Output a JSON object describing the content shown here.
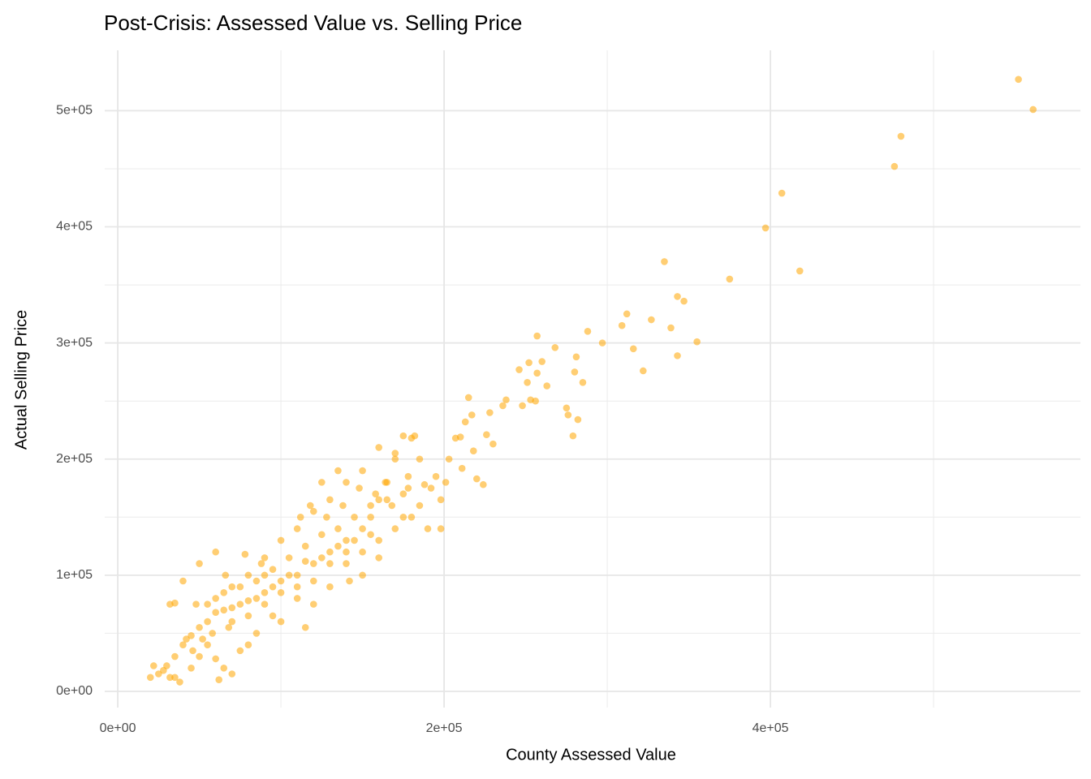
{
  "chart_data": {
    "type": "scatter",
    "title": "Post-Crisis: Assessed Value vs. Selling Price",
    "x_label": "County Assessed Value",
    "y_label": "Actual Selling Price",
    "color": "#ffa500",
    "grid": true,
    "xlim": [
      -8000,
      590000
    ],
    "ylim": [
      -14000,
      552000
    ],
    "xticks": [
      {
        "value": 0,
        "label": "0e+00"
      },
      {
        "value": 200000,
        "label": "2e+05"
      },
      {
        "value": 400000,
        "label": "4e+05"
      }
    ],
    "yticks": [
      {
        "value": 0,
        "label": "0e+00"
      },
      {
        "value": 100000,
        "label": "1e+05"
      },
      {
        "value": 200000,
        "label": "2e+05"
      },
      {
        "value": 300000,
        "label": "3e+05"
      },
      {
        "value": 400000,
        "label": "4e+05"
      },
      {
        "value": 500000,
        "label": "5e+05"
      }
    ],
    "xminor": [
      100000,
      300000,
      500000
    ],
    "yminor": [
      50000,
      150000,
      250000,
      350000,
      450000
    ],
    "x": [
      552000,
      561000,
      480000,
      476000,
      407000,
      397000,
      418000,
      375000,
      335000,
      343000,
      347000,
      355000,
      343000,
      339000,
      327000,
      322000,
      316000,
      312000,
      309000,
      297000,
      288000,
      285000,
      280000,
      281000,
      275000,
      276000,
      279000,
      282000,
      268000,
      263000,
      257000,
      260000,
      252000,
      251000,
      246000,
      257000,
      253000,
      248000,
      256000,
      238000,
      236000,
      228000,
      230000,
      226000,
      213000,
      217000,
      215000,
      207000,
      210000,
      218000,
      220000,
      224000,
      203000,
      211000,
      198000,
      192000,
      198000,
      201000,
      182000,
      180000,
      178000,
      175000,
      170000,
      164000,
      160000,
      155000,
      150000,
      145000,
      140000,
      135000,
      130000,
      125000,
      120000,
      115000,
      110000,
      105000,
      100000,
      95000,
      90000,
      85000,
      80000,
      75000,
      70000,
      65000,
      60000,
      55000,
      50000,
      45000,
      40000,
      35000,
      30000,
      25000,
      20000,
      22000,
      28000,
      32000,
      35000,
      38000,
      45000,
      50000,
      55000,
      60000,
      65000,
      70000,
      62000,
      48000,
      40000,
      35000,
      32000,
      50000,
      60000,
      70000,
      80000,
      90000,
      100000,
      110000,
      120000,
      130000,
      140000,
      125000,
      135000,
      150000,
      160000,
      170000,
      165000,
      150000,
      160000,
      140000,
      130000,
      120000,
      115000,
      110000,
      100000,
      95000,
      85000,
      80000,
      75000,
      68000,
      58000,
      52000,
      46000,
      42000,
      90000,
      105000,
      115000,
      125000,
      135000,
      145000,
      155000,
      165000,
      175000,
      185000,
      190000,
      180000,
      170000,
      160000,
      150000,
      140000,
      130000,
      120000,
      110000,
      100000,
      95000,
      85000,
      75000,
      65000,
      60000,
      55000,
      70000,
      80000,
      90000,
      185000,
      195000,
      175000,
      88000,
      78000,
      66000,
      112000,
      118000,
      128000,
      138000,
      148000,
      158000,
      168000,
      178000,
      188000,
      142000,
      155000
    ],
    "values": [
      527000,
      501000,
      478000,
      452000,
      429000,
      399000,
      362000,
      355000,
      370000,
      340000,
      336000,
      301000,
      289000,
      313000,
      320000,
      276000,
      295000,
      325000,
      315000,
      300000,
      310000,
      266000,
      275000,
      288000,
      244000,
      238000,
      220000,
      234000,
      296000,
      263000,
      306000,
      284000,
      283000,
      266000,
      277000,
      274000,
      251000,
      246000,
      250000,
      251000,
      246000,
      240000,
      213000,
      221000,
      232000,
      238000,
      253000,
      218000,
      219000,
      207000,
      183000,
      178000,
      200000,
      192000,
      165000,
      175000,
      140000,
      180000,
      220000,
      218000,
      185000,
      150000,
      200000,
      180000,
      165000,
      150000,
      140000,
      130000,
      120000,
      125000,
      120000,
      115000,
      110000,
      112000,
      100000,
      100000,
      95000,
      90000,
      85000,
      80000,
      78000,
      75000,
      72000,
      70000,
      68000,
      60000,
      55000,
      48000,
      40000,
      30000,
      22000,
      15000,
      12000,
      22000,
      18000,
      12000,
      12000,
      8000,
      20000,
      30000,
      40000,
      28000,
      20000,
      15000,
      10000,
      75000,
      95000,
      76000,
      75000,
      110000,
      120000,
      90000,
      100000,
      115000,
      130000,
      140000,
      155000,
      165000,
      180000,
      180000,
      190000,
      190000,
      210000,
      205000,
      180000,
      100000,
      115000,
      110000,
      90000,
      75000,
      55000,
      80000,
      60000,
      65000,
      50000,
      40000,
      35000,
      55000,
      50000,
      45000,
      35000,
      45000,
      100000,
      115000,
      125000,
      135000,
      140000,
      150000,
      160000,
      165000,
      170000,
      160000,
      140000,
      150000,
      140000,
      130000,
      120000,
      130000,
      110000,
      95000,
      90000,
      85000,
      105000,
      95000,
      90000,
      85000,
      80000,
      75000,
      60000,
      65000,
      75000,
      200000,
      185000,
      220000,
      110000,
      118000,
      100000,
      150000,
      160000,
      150000,
      160000,
      175000,
      170000,
      160000,
      175000,
      178000,
      95000,
      135000
    ]
  }
}
